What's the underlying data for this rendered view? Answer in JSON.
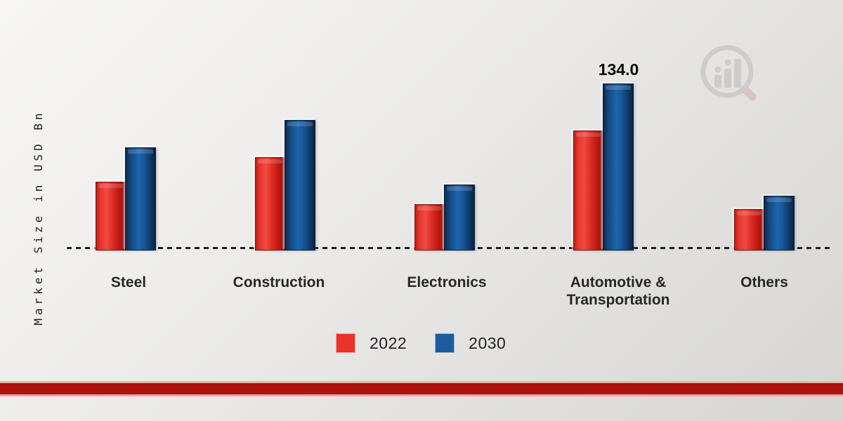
{
  "chart_data": {
    "type": "bar",
    "title": "",
    "ylabel": "Market Size in USD Bn",
    "categories": [
      "Steel",
      "Construction",
      "Electronics",
      "Automotive & Transportation",
      "Others"
    ],
    "series": [
      {
        "name": "2022",
        "color": "#e8342c",
        "values": [
          55,
          75,
          37,
          96,
          33
        ]
      },
      {
        "name": "2030",
        "color": "#1a5c9e",
        "values": [
          83,
          105,
          53,
          134,
          44
        ]
      }
    ],
    "annotations": [
      {
        "category_index": 3,
        "series_index": 1,
        "text": "134.0"
      }
    ],
    "ylim": [
      0,
      140
    ],
    "axes_visible": false,
    "baseline_style": "dashed",
    "grid": false,
    "legend_position": "bottom-center"
  },
  "colors": {
    "series_2022": "#e8342c",
    "series_2030": "#1a5c9e",
    "bottom_band": "#ad120d",
    "text": "#262626"
  },
  "watermark_icon": "magnifier-bar-chart-logo"
}
